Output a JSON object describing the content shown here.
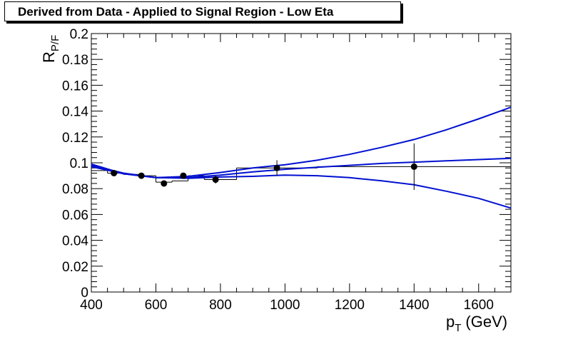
{
  "title": "Derived from Data - Applied to Signal Region - Low Eta",
  "chart_data": {
    "type": "scatter",
    "title": "Derived from Data - Applied to Signal Region - Low Eta",
    "xlabel_main": "p",
    "xlabel_sub": "T",
    "xlabel_unit": "(GeV)",
    "ylabel_main": "R",
    "ylabel_sub": "P/F",
    "xlim": [
      400,
      1700
    ],
    "ylim": [
      0,
      0.2
    ],
    "x_ticks": [
      400,
      600,
      800,
      1000,
      1200,
      1400,
      1600
    ],
    "x_tick_labels": [
      "400",
      "600",
      "800",
      "1000",
      "1200",
      "1400",
      "1600"
    ],
    "y_ticks": [
      0,
      0.02,
      0.04,
      0.06,
      0.08,
      0.1,
      0.12,
      0.14,
      0.16,
      0.18,
      0.2
    ],
    "y_tick_labels": [
      "0",
      "0.02",
      "0.04",
      "0.06",
      "0.08",
      "0.1",
      "0.12",
      "0.14",
      "0.16",
      "0.18",
      "0.2"
    ],
    "points": [
      {
        "x": 470,
        "y": 0.092,
        "yerr": 0.002
      },
      {
        "x": 555,
        "y": 0.09,
        "yerr": 0.002
      },
      {
        "x": 625,
        "y": 0.084,
        "yerr": 0.002
      },
      {
        "x": 685,
        "y": 0.09,
        "yerr": 0.002
      },
      {
        "x": 785,
        "y": 0.087,
        "yerr": 0.003
      },
      {
        "x": 975,
        "y": 0.096,
        "yerr": 0.006
      },
      {
        "x": 1400,
        "y": 0.097,
        "yerr": 0.018
      }
    ],
    "histogram": {
      "edges": [
        400,
        450,
        500,
        550,
        600,
        650,
        700,
        750,
        850,
        1100,
        1700
      ],
      "values": [
        0.094,
        0.092,
        0.091,
        0.09,
        0.085,
        0.086,
        0.09,
        0.087,
        0.096,
        0.097
      ]
    },
    "fit_curves": [
      {
        "x": [
          400,
          500,
          600,
          700,
          800,
          900,
          1000,
          1100,
          1200,
          1300,
          1400,
          1500,
          1600,
          1700
        ],
        "y": [
          0.099,
          0.0915,
          0.0885,
          0.0895,
          0.0925,
          0.096,
          0.0985,
          0.102,
          0.1065,
          0.112,
          0.118,
          0.1255,
          0.134,
          0.143
        ]
      },
      {
        "x": [
          400,
          500,
          600,
          700,
          800,
          900,
          1000,
          1100,
          1200,
          1300,
          1400,
          1500,
          1600,
          1700
        ],
        "y": [
          0.097,
          0.0915,
          0.0885,
          0.088,
          0.089,
          0.0895,
          0.0905,
          0.09,
          0.0885,
          0.086,
          0.083,
          0.078,
          0.0725,
          0.065
        ]
      },
      {
        "x": [
          400,
          500,
          600,
          700,
          800,
          900,
          1000,
          1100,
          1200,
          1300,
          1400,
          1500,
          1600,
          1700
        ],
        "y": [
          0.098,
          0.092,
          0.0885,
          0.0885,
          0.0905,
          0.093,
          0.095,
          0.0965,
          0.098,
          0.0995,
          0.1005,
          0.1015,
          0.1025,
          0.1035
        ]
      }
    ],
    "grid": false,
    "legend": "none",
    "colors": {
      "fit": "#0010d0",
      "points": "#000000",
      "frame": "#000000"
    }
  }
}
